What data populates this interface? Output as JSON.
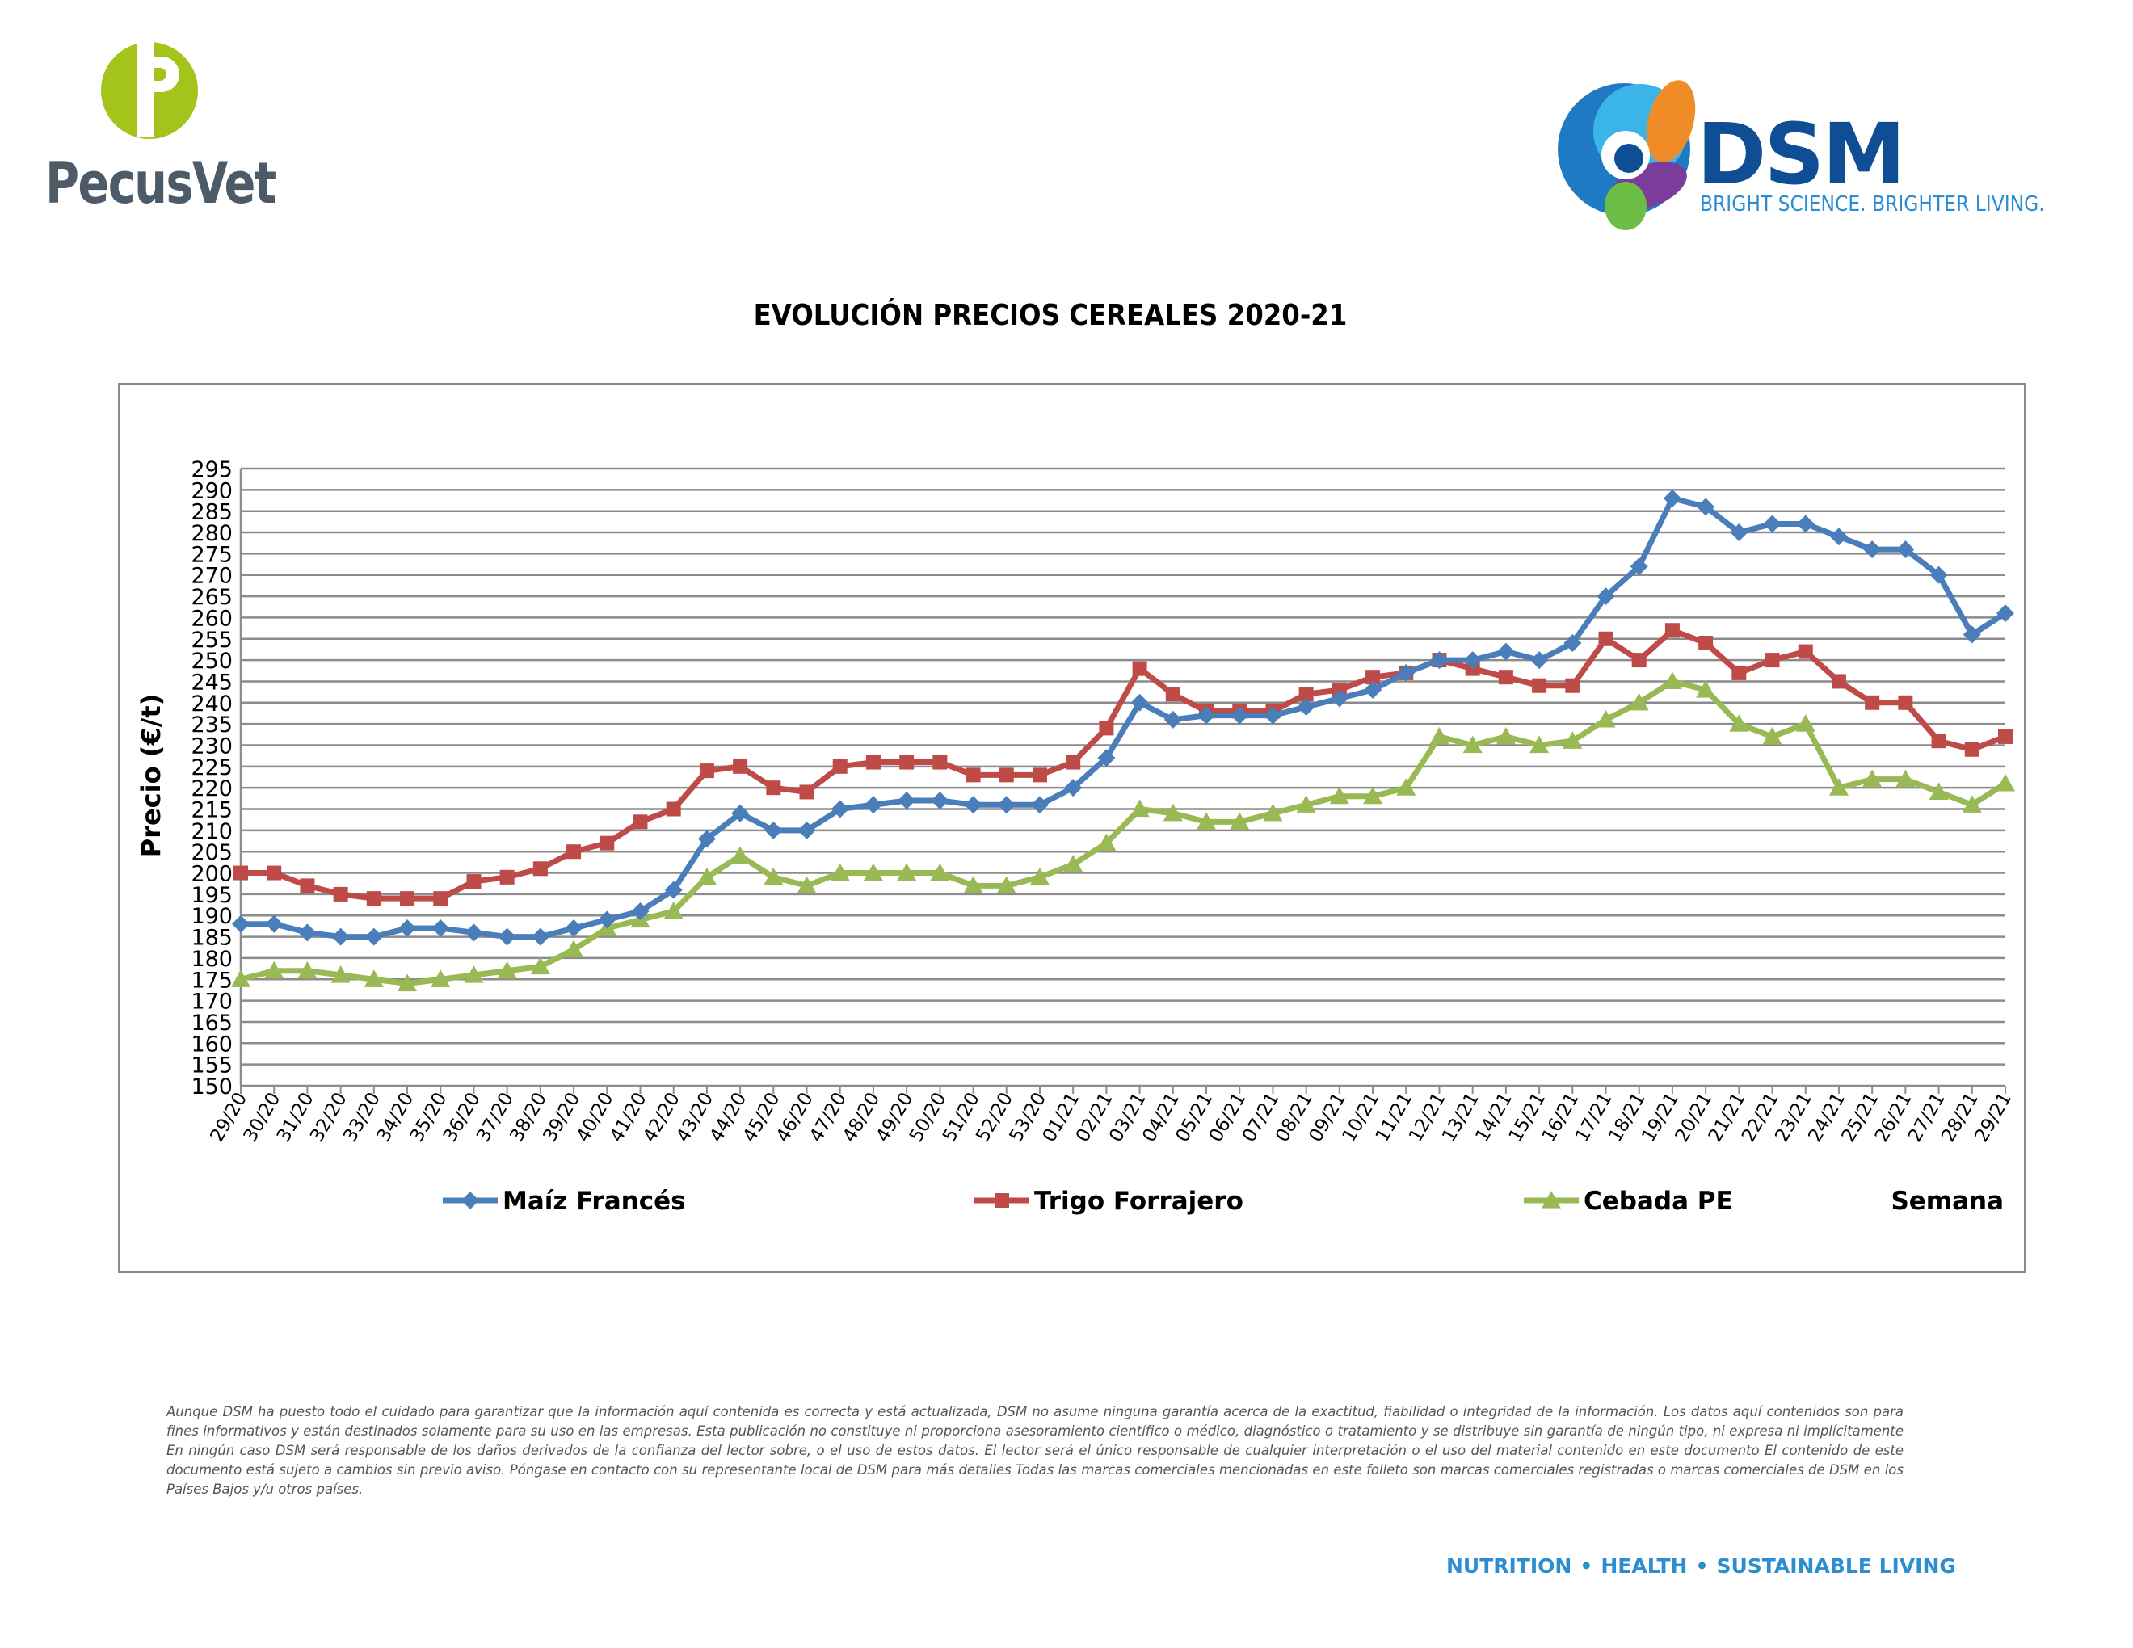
{
  "header": {
    "left_logo_name": "PecusVet",
    "right_logo_name": "DSM",
    "right_logo_tagline": "BRIGHT SCIENCE. BRIGHTER LIVING."
  },
  "chart_data": {
    "type": "line",
    "title": "EVOLUCIÓN PRECIOS CEREALES 2020-21",
    "ylabel": "Precio (€/t)",
    "xlabel": "Semana",
    "ylim": [
      150,
      295
    ],
    "ytick_step": 5,
    "grid": true,
    "legend_position": "bottom",
    "x": [
      "29/20",
      "30/20",
      "31/20",
      "32/20",
      "33/20",
      "34/20",
      "35/20",
      "36/20",
      "37/20",
      "38/20",
      "39/20",
      "40/20",
      "41/20",
      "42/20",
      "43/20",
      "44/20",
      "45/20",
      "46/20",
      "47/20",
      "48/20",
      "49/20",
      "50/20",
      "51/20",
      "52/20",
      "53/20",
      "01/21",
      "02/21",
      "03/21",
      "04/21",
      "05/21",
      "06/21",
      "07/21",
      "08/21",
      "09/21",
      "10/21",
      "11/21",
      "12/21",
      "13/21",
      "14/21",
      "15/21",
      "16/21",
      "17/21",
      "18/21",
      "19/21",
      "20/21",
      "21/21",
      "22/21",
      "23/21",
      "24/21",
      "25/21",
      "26/21",
      "27/21",
      "28/21",
      "29/21"
    ],
    "series": [
      {
        "name": "Maíz Francés",
        "color": "#4a7ebb",
        "marker": "diamond",
        "values": [
          188,
          188,
          186,
          185,
          185,
          187,
          187,
          186,
          185,
          185,
          187,
          189,
          191,
          196,
          208,
          214,
          210,
          210,
          215,
          216,
          217,
          217,
          216,
          216,
          216,
          220,
          227,
          240,
          236,
          237,
          237,
          237,
          239,
          241,
          243,
          247,
          250,
          250,
          252,
          250,
          254,
          265,
          272,
          288,
          286,
          280,
          282,
          282,
          279,
          276,
          276,
          270,
          256,
          261
        ]
      },
      {
        "name": "Trigo Forrajero",
        "color": "#be4b48",
        "marker": "square",
        "values": [
          200,
          200,
          197,
          195,
          194,
          194,
          194,
          198,
          199,
          201,
          205,
          207,
          212,
          215,
          224,
          225,
          220,
          219,
          225,
          226,
          226,
          226,
          223,
          223,
          223,
          226,
          234,
          248,
          242,
          238,
          238,
          238,
          242,
          243,
          246,
          247,
          250,
          248,
          246,
          244,
          244,
          255,
          250,
          257,
          254,
          247,
          250,
          252,
          245,
          240,
          240,
          231,
          229,
          232
        ]
      },
      {
        "name": "Cebada PE",
        "color": "#98b954",
        "marker": "triangle",
        "values": [
          175,
          177,
          177,
          176,
          175,
          174,
          175,
          176,
          177,
          178,
          182,
          187,
          189,
          191,
          199,
          204,
          199,
          197,
          200,
          200,
          200,
          200,
          197,
          197,
          199,
          202,
          207,
          215,
          214,
          212,
          212,
          214,
          216,
          218,
          218,
          220,
          232,
          230,
          232,
          230,
          231,
          236,
          240,
          245,
          243,
          235,
          232,
          235,
          220,
          222,
          222,
          219,
          216,
          221
        ]
      }
    ]
  },
  "disclaimer": "Aunque DSM ha puesto todo el cuidado para garantizar que la información aquí contenida es correcta y está actualizada, DSM no asume ninguna garantía acerca de la exactitud, fiabilidad o integridad de la información. Los datos aquí contenidos son para fines informativos y están destinados solamente para su uso en las empresas. Esta publicación no constituye ni proporciona asesoramiento científico o médico, diagnóstico o tratamiento y se distribuye sin garantía de ningún tipo, ni expresa ni implícitamente En ningún caso DSM será responsable de los daños derivados de la confianza del lector sobre, o el uso de estos datos. El lector será el único responsable de cualquier interpretación o el uso del material contenido en este documento El contenido de este documento está sujeto a cambios sin previo aviso. Póngase en contacto con su representante local de DSM para más detalles Todas las marcas comerciales mencionadas en este folleto son marcas comerciales registradas o marcas comerciales de DSM en los Países Bajos y/u otros países.",
  "footer": {
    "items": [
      "NUTRITION",
      "HEALTH",
      "SUSTAINABLE LIVING"
    ],
    "separator": "•"
  }
}
